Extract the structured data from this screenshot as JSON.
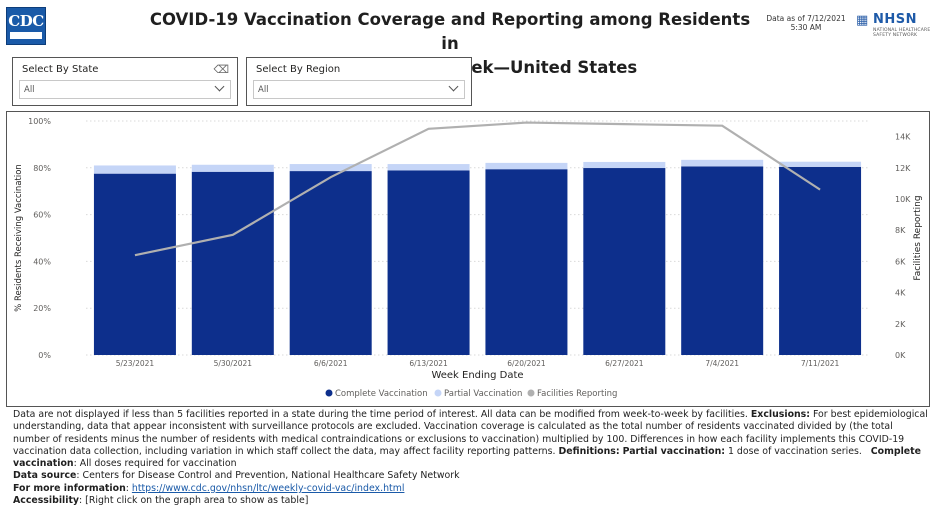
{
  "header": {
    "logo_text": "CDC",
    "title_line1": "COVID-19 Vaccination Coverage and Reporting among Residents in",
    "title_line2": "Nursing Homes, by week—United States",
    "data_as_of_line1": "Data as of 7/12/2021",
    "data_as_of_line2": "5:30 AM",
    "nhsn_name": "NHSN",
    "nhsn_subtitle": "NATIONAL HEALTHCARE SAFETY NETWORK"
  },
  "filters": {
    "state": {
      "label": "Select By State",
      "value": "All"
    },
    "region": {
      "label": "Select By Region",
      "value": "All"
    }
  },
  "colors": {
    "complete": "#0d2f8c",
    "partial": "#c5d5f7",
    "facilities": "#b0b0b0"
  },
  "chart_data": {
    "type": "bar",
    "title": "",
    "xlabel": "Week Ending Date",
    "ylabel": "% Residents Receiving Vaccination",
    "y2label": "Facilities Reporting",
    "ylim": [
      0,
      100
    ],
    "y2lim": [
      0,
      15000
    ],
    "yticks": [
      "0%",
      "20%",
      "40%",
      "60%",
      "80%",
      "100%"
    ],
    "y2ticks": [
      "0K",
      "2K",
      "4K",
      "6K",
      "8K",
      "10K",
      "12K",
      "14K"
    ],
    "categories": [
      "5/23/2021",
      "5/30/2021",
      "6/6/2021",
      "6/13/2021",
      "6/20/2021",
      "6/27/2021",
      "7/4/2021",
      "7/11/2021"
    ],
    "series": [
      {
        "name": "Complete Vaccination",
        "kind": "bar",
        "values": [
          77.5,
          78.3,
          78.6,
          78.9,
          79.4,
          79.9,
          80.6,
          80.4
        ]
      },
      {
        "name": "Partial Vaccination",
        "kind": "bar",
        "values": [
          3.5,
          3.0,
          3.0,
          2.7,
          2.7,
          2.6,
          2.8,
          2.2
        ]
      },
      {
        "name": "Facilities Reporting",
        "kind": "line",
        "axis": "y2",
        "values": [
          6400,
          7700,
          11400,
          14500,
          14900,
          14800,
          14700,
          10600
        ]
      }
    ],
    "legend": [
      "Complete Vaccination",
      "Partial Vaccination",
      "Facilities Reporting"
    ],
    "legend_position": "bottom"
  },
  "footnotes": {
    "intro": "Data are not displayed if less than 5 facilities reported in a state during the time period of interest. All data can be modified from week-to-week by facilities.",
    "exclusions_label": "Exclusions:",
    "exclusions_text": "For best epidemiological understanding, data that appear inconsistent with surveillance protocols are excluded. Vaccination coverage is calculated as the total number of residents vaccinated divided by (the total number of residents minus the number of residents with medical contraindications or exclusions to vaccination) multiplied by 100. Differences in how each facility implements this COVID-19 vaccination data collection, including variation in which staff collect the data, may affect facility reporting patterns.",
    "definitions_label": "Definitions:",
    "partial_label": "Partial vaccination:",
    "partial_text": "1 dose of vaccination series.",
    "complete_label": "Complete vaccination",
    "complete_text": ":  All doses required for vaccination",
    "source_label": "Data source",
    "source_text": ": Centers for Disease Control and Prevention, National Healthcare Safety Network",
    "more_label": "For more information",
    "more_colon": ": ",
    "more_link": "https://www.cdc.gov/nhsn/ltc/weekly-covid-vac/index.html",
    "access_label": "Accessibility",
    "access_text": ": [Right click on the graph area to show as table]"
  }
}
